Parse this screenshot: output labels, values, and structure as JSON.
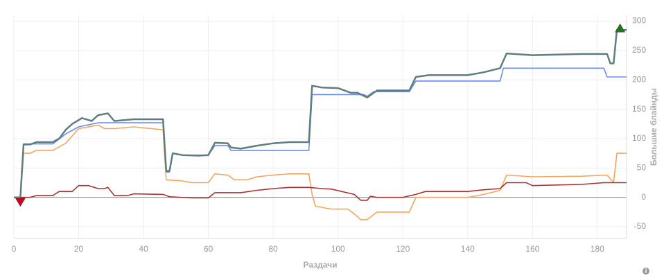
{
  "chart_data": {
    "type": "line",
    "x_label": "Раздачи",
    "y_label": "Большие блайнды",
    "xlim": [
      0,
      189
    ],
    "ylim": [
      -70,
      310
    ],
    "xticks": [
      0,
      20,
      40,
      60,
      80,
      100,
      120,
      140,
      160,
      180
    ],
    "yticks": [
      -50,
      0,
      50,
      100,
      150,
      200,
      250,
      300
    ],
    "grid": true,
    "y_axis_side": "right",
    "series": [
      {
        "color": "#f5a55a",
        "x": [
          0,
          2,
          3,
          5,
          7,
          12,
          16,
          20,
          26,
          28,
          31,
          37,
          46,
          47,
          52,
          55,
          60,
          62,
          66,
          68,
          72,
          75,
          80,
          85,
          91,
          92,
          93,
          98,
          103,
          105,
          107,
          109,
          112,
          122,
          124,
          126,
          140,
          145,
          150,
          152,
          160,
          175,
          183,
          185,
          186,
          189
        ],
        "values": [
          0,
          0,
          75,
          75,
          80,
          80,
          92,
          117,
          123,
          117,
          117,
          120,
          115,
          30,
          28,
          25,
          25,
          40,
          38,
          30,
          30,
          35,
          38,
          40,
          40,
          5,
          -15,
          -20,
          -20,
          -28,
          -38,
          -38,
          -25,
          -25,
          0,
          0,
          0,
          5,
          12,
          38,
          35,
          36,
          38,
          25,
          75,
          75
        ]
      },
      {
        "color": "#a83232",
        "x": [
          0,
          2,
          5,
          7,
          12,
          14,
          18,
          20,
          23,
          26,
          28,
          29,
          31,
          35,
          37,
          46,
          48,
          55,
          60,
          62,
          70,
          75,
          80,
          85,
          91,
          95,
          98,
          105,
          107,
          109,
          110,
          112,
          120,
          124,
          127,
          140,
          145,
          150,
          152,
          158,
          160,
          175,
          182,
          185,
          189
        ],
        "values": [
          0,
          0,
          0,
          3,
          3,
          10,
          10,
          20,
          20,
          15,
          15,
          17,
          3,
          3,
          6,
          5,
          1,
          -1,
          -1,
          8,
          8,
          12,
          15,
          17,
          17,
          15,
          14,
          5,
          -5,
          -5,
          2,
          0,
          0,
          5,
          10,
          10,
          13,
          15,
          25,
          25,
          20,
          22,
          25,
          25,
          25
        ]
      },
      {
        "color": "#6b8cef",
        "x": [
          0,
          2,
          3,
          12,
          16,
          20,
          26,
          31,
          46,
          47,
          48,
          49,
          52,
          60,
          62,
          66,
          67,
          91,
          92,
          108,
          109,
          111,
          122,
          124,
          150,
          151,
          182,
          183,
          189
        ],
        "values": [
          0,
          0,
          91,
          91,
          108,
          120,
          127,
          127,
          127,
          43,
          43,
          75,
          72,
          72,
          88,
          88,
          80,
          80,
          175,
          175,
          172,
          180,
          180,
          198,
          198,
          220,
          220,
          205,
          205
        ]
      },
      {
        "color": "#5f7d7d",
        "x": [
          0,
          2,
          3,
          5,
          7,
          12,
          14,
          16,
          18,
          21,
          24,
          26,
          29,
          31,
          37,
          46,
          47,
          48,
          49,
          52,
          57,
          60,
          62,
          66,
          67,
          70,
          75,
          80,
          85,
          91,
          92,
          95,
          100,
          104,
          106,
          109,
          112,
          122,
          124,
          128,
          140,
          145,
          150,
          152,
          160,
          175,
          183,
          184,
          185,
          186,
          189
        ],
        "values": [
          0,
          0,
          90,
          90,
          94,
          94,
          100,
          115,
          125,
          135,
          130,
          140,
          143,
          130,
          133,
          133,
          45,
          45,
          75,
          72,
          71,
          72,
          93,
          92,
          85,
          83,
          88,
          92,
          94,
          94,
          190,
          187,
          186,
          178,
          178,
          170,
          182,
          182,
          205,
          208,
          208,
          213,
          220,
          245,
          242,
          244,
          244,
          228,
          228,
          285,
          285
        ]
      }
    ],
    "markers": [
      {
        "x": 2,
        "y": -8,
        "color": "#d0021b",
        "shape": "down"
      },
      {
        "x": 187,
        "y": 288,
        "color": "#1a7a1a",
        "shape": "up"
      }
    ]
  }
}
